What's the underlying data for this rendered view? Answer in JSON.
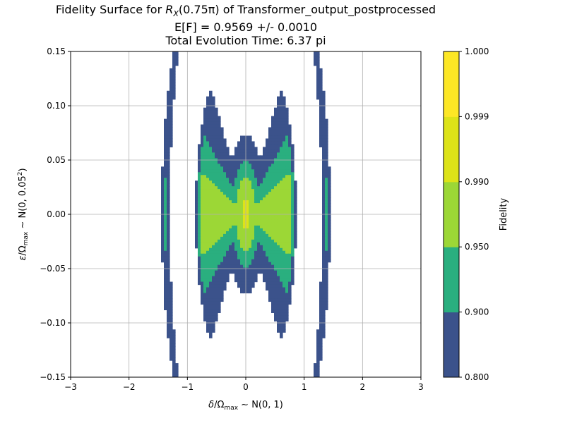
{
  "chart_data": {
    "type": "contourf",
    "title_lines": {
      "line1_prefix": "Fidelity Surface for ",
      "line1_math": "R",
      "line1_sub": "X",
      "line1_arg": "(0.75π)",
      "line1_suffix": " of Transformer_output_postprocessed",
      "line2": "E[F] = 0.9569 +/- 0.0010",
      "line3": "Total Evolution Time: 6.37 pi"
    },
    "xlabel": {
      "var": "δ",
      "sep": "/",
      "norm": "Ω",
      "norm_sub": "max",
      "dist": " ∼ N(0, 1)"
    },
    "ylabel": {
      "var": "ε",
      "sep": "/",
      "norm": "Ω",
      "norm_sub": "max",
      "dist_prefix": " ∼ N(0, 0.05",
      "dist_sup": "2",
      "dist_suffix": ")"
    },
    "xlim": [
      -3,
      3
    ],
    "ylim": [
      -0.15,
      0.15
    ],
    "xticks": [
      "−3",
      "−2",
      "−1",
      "0",
      "1",
      "2",
      "3"
    ],
    "yticks": [
      "−0.15",
      "−0.10",
      "−0.05",
      "0.00",
      "0.05",
      "0.10",
      "0.15"
    ],
    "grid": true,
    "levels": [
      0.8,
      0.9,
      0.95,
      0.99,
      0.999,
      1.0
    ],
    "level_colors": [
      "#3b528b",
      "#2aaf7f",
      "#9cd736",
      "#dde318",
      "#fde725"
    ],
    "colorbar": {
      "label": "Fidelity",
      "ticks": [
        "0.800",
        "0.900",
        "0.950",
        "0.990",
        "0.999",
        "1.000"
      ]
    }
  }
}
